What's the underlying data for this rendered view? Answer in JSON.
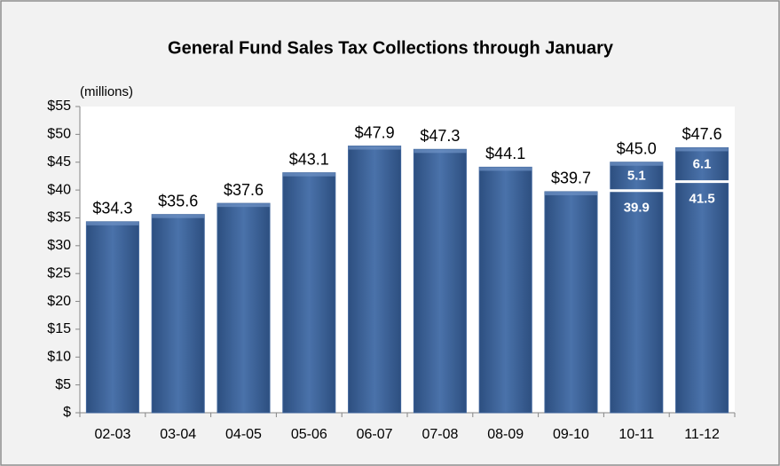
{
  "chart_data": {
    "type": "bar",
    "title": "General Fund Sales Tax Collections through January",
    "y_unit_label": "(millions)",
    "categories": [
      "02-03",
      "03-04",
      "04-05",
      "05-06",
      "06-07",
      "07-08",
      "08-09",
      "09-10",
      "10-11",
      "11-12"
    ],
    "series": [
      {
        "color": "#3d6399",
        "values": [
          34.3,
          35.6,
          37.6,
          43.1,
          47.9,
          47.3,
          44.1,
          39.7,
          39.9,
          41.5
        ]
      },
      {
        "color": "#3d6399",
        "values": [
          null,
          null,
          null,
          null,
          null,
          null,
          null,
          null,
          5.1,
          6.1
        ]
      }
    ],
    "totals": [
      34.3,
      35.6,
      37.6,
      43.1,
      47.9,
      47.3,
      44.1,
      39.7,
      45.0,
      47.6
    ],
    "total_labels": [
      "$34.3",
      "$35.6",
      "$37.6",
      "$43.1",
      "$47.9",
      "$47.3",
      "$44.1",
      "$39.7",
      "$45.0",
      "$47.6"
    ],
    "ylim": [
      0,
      55
    ],
    "yticks": [
      {
        "value": 0,
        "label": "$"
      },
      {
        "value": 5,
        "label": "$5"
      },
      {
        "value": 10,
        "label": "$10"
      },
      {
        "value": 15,
        "label": "$15"
      },
      {
        "value": 20,
        "label": "$20"
      },
      {
        "value": 25,
        "label": "$25"
      },
      {
        "value": 30,
        "label": "$30"
      },
      {
        "value": 35,
        "label": "$35"
      },
      {
        "value": 40,
        "label": "$40"
      },
      {
        "value": 45,
        "label": "$45"
      },
      {
        "value": 50,
        "label": "$50"
      },
      {
        "value": 55,
        "label": "$55"
      }
    ],
    "grid": false
  }
}
